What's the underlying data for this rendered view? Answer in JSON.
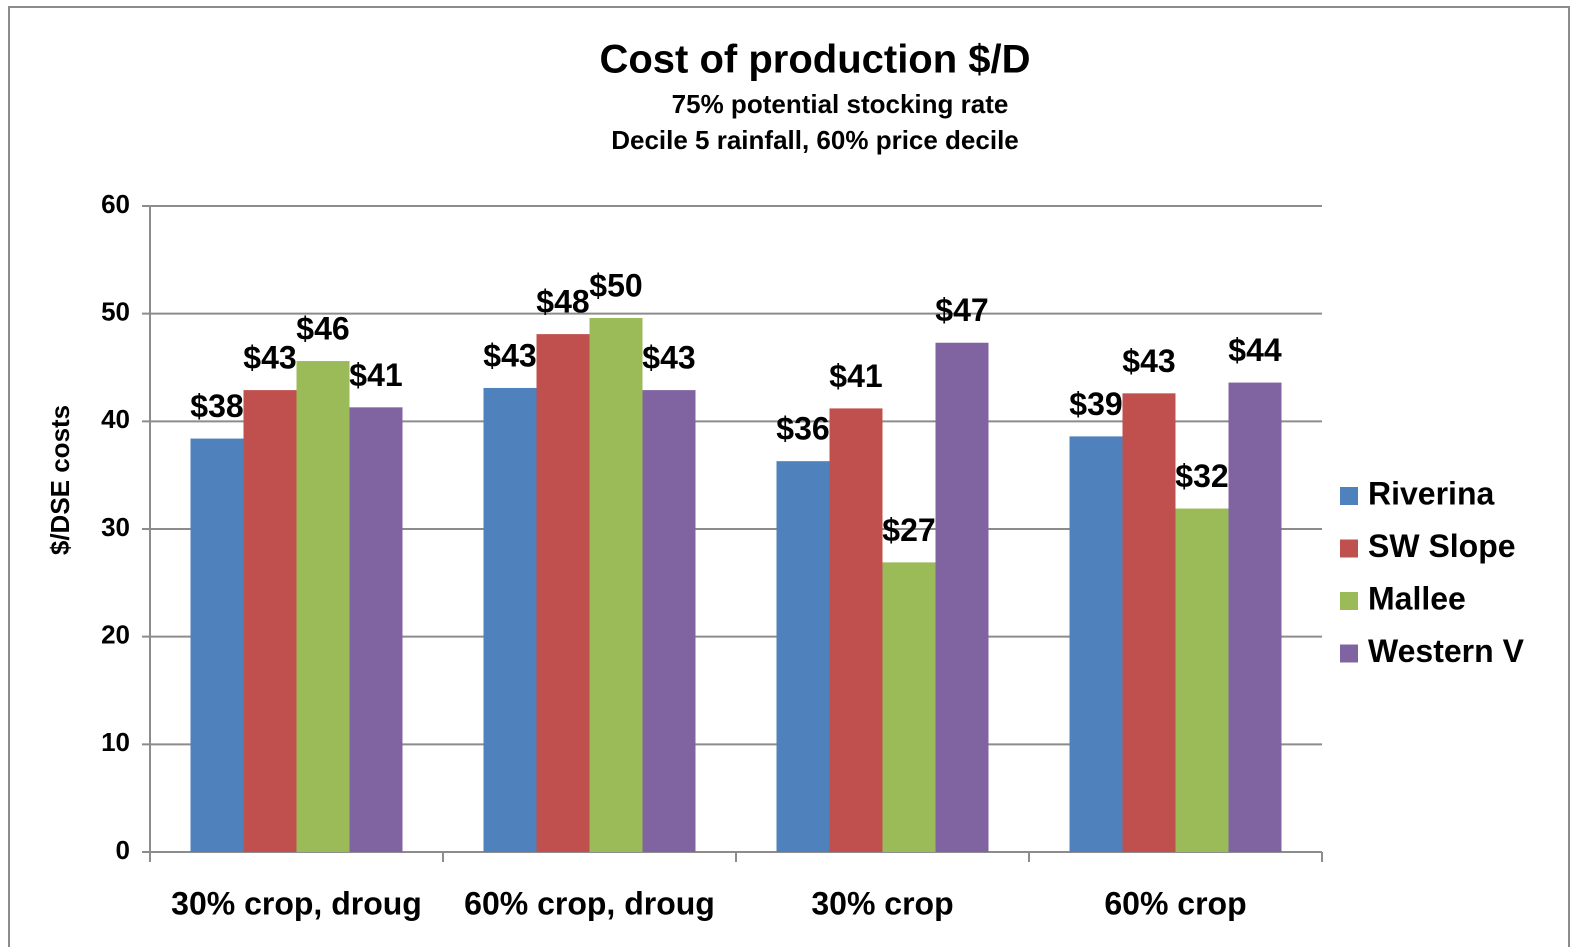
{
  "chart_data": {
    "type": "bar",
    "title": "Cost of production $/D",
    "subtitle": [
      "75% potential stocking rate",
      "Decile 5 rainfall, 60% price decile"
    ],
    "y_label": "$/DSE costs",
    "categories": [
      "30% crop, droug",
      "60% crop, droug",
      "30% crop",
      "60% crop"
    ],
    "series": [
      {
        "name": "Riverina",
        "color": "#4f81bd",
        "values": [
          38.4,
          43.1,
          36.3,
          38.6
        ],
        "value_labels": [
          "$38",
          "$43",
          "$36",
          "$39"
        ]
      },
      {
        "name": "SW Slope",
        "color": "#c0504d",
        "values": [
          42.9,
          48.1,
          41.2,
          42.6
        ],
        "value_labels": [
          "$43",
          "$48",
          "$41",
          "$43"
        ]
      },
      {
        "name": "Mallee",
        "color": "#9bbb59",
        "values": [
          45.6,
          49.6,
          26.9,
          31.9
        ],
        "value_labels": [
          "$46",
          "$50",
          "$27",
          "$32"
        ]
      },
      {
        "name": "Western V",
        "color": "#8064a2",
        "values": [
          41.3,
          42.9,
          47.3,
          43.6
        ],
        "value_labels": [
          "$41",
          "$43",
          "$47",
          "$44"
        ]
      }
    ],
    "ylim": [
      0,
      60
    ],
    "yticks": [
      0,
      10,
      20,
      30,
      40,
      50,
      60
    ],
    "grid": true,
    "legend": "right"
  }
}
